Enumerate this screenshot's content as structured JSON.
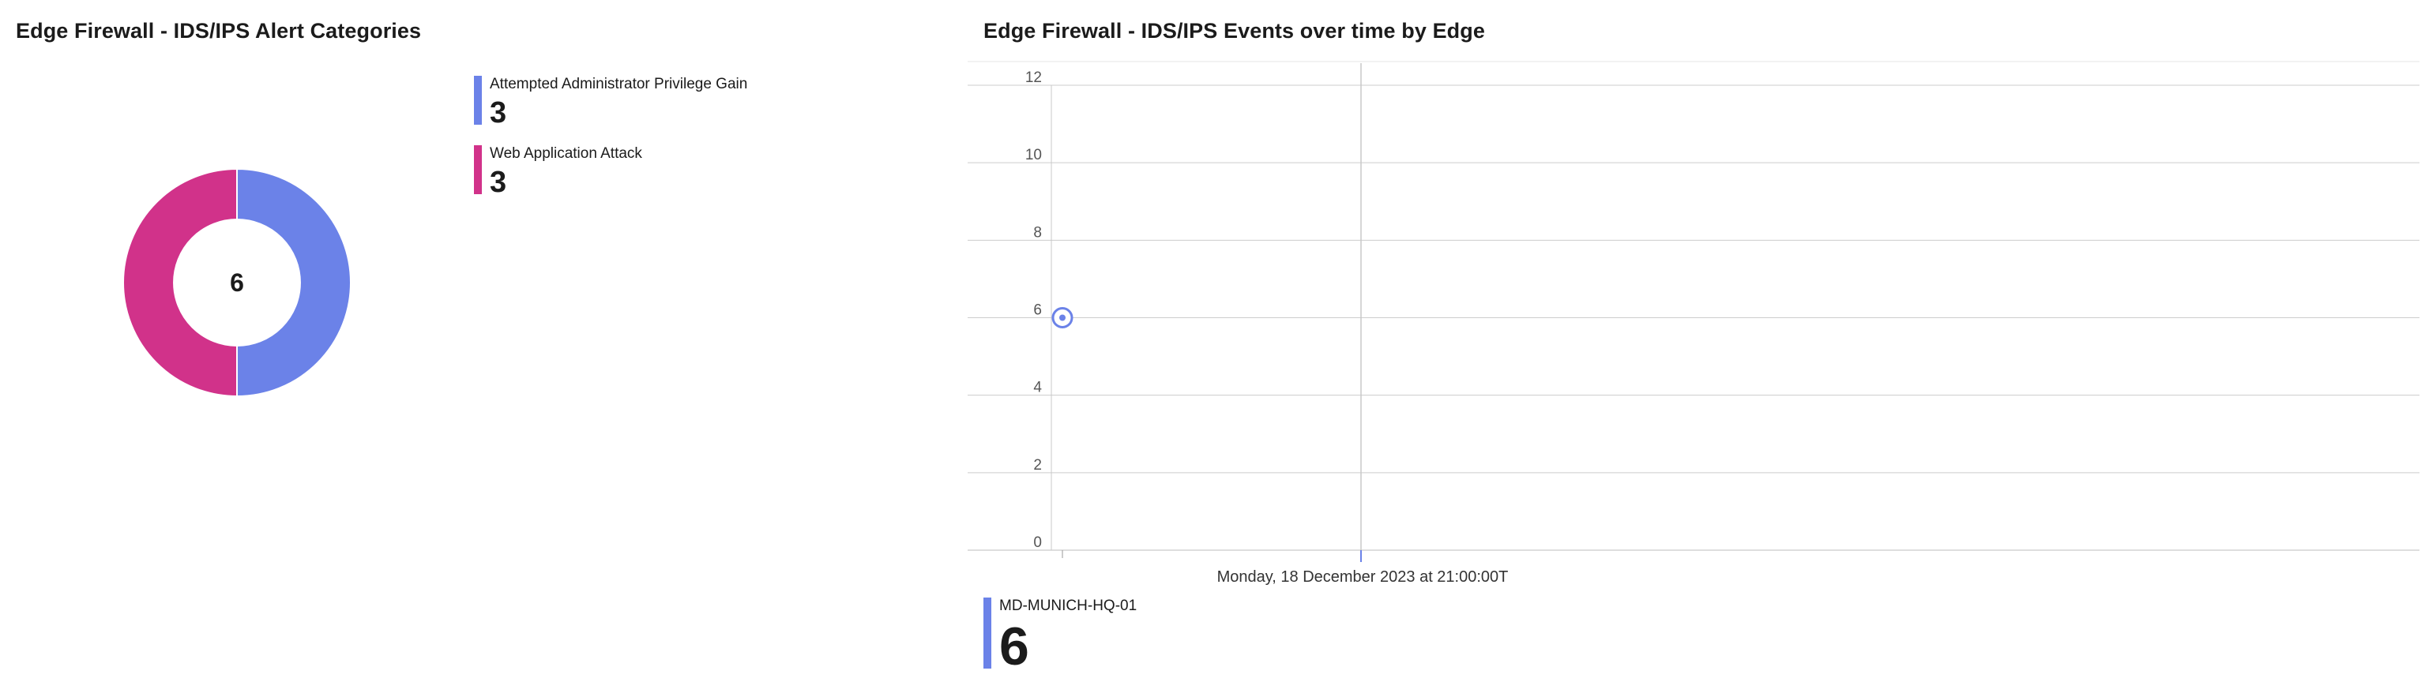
{
  "colors": {
    "series_blue": "#6b82e8",
    "series_magenta": "#d1328a",
    "grid": "#cccccc",
    "axis": "#c8c8c8"
  },
  "chart_data": [
    {
      "type": "pie",
      "title": "Edge Firewall - IDS/IPS Alert Categories",
      "center_label": "6",
      "slices": [
        {
          "name": "Attempted Administrator Privilege Gain",
          "value": 3,
          "color": "#6b82e8"
        },
        {
          "name": "Web Application Attack",
          "value": 3,
          "color": "#d1328a"
        }
      ]
    },
    {
      "type": "line",
      "title": "Edge Firewall - IDS/IPS Events over time by Edge",
      "ylim": [
        0,
        12
      ],
      "yticks": [
        "0",
        "2",
        "4",
        "6",
        "8",
        "10",
        "12"
      ],
      "x_label": "Monday, 18 December 2023 at 21:00:00T",
      "grid": true,
      "series": [
        {
          "name": "MD-MUNICH-HQ-01",
          "color": "#6b82e8",
          "points": [
            {
              "y": 6
            }
          ],
          "total": "6"
        }
      ]
    }
  ]
}
